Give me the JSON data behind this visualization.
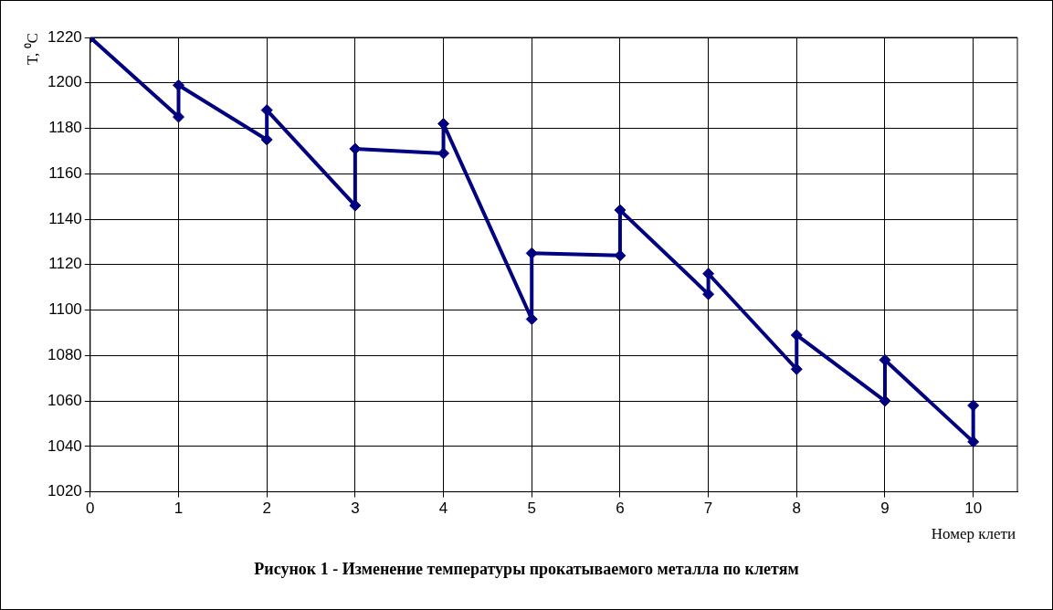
{
  "chart_data": {
    "type": "line",
    "title": "Рисунок 1 - Изменение температуры прокатываемого металла по клетям",
    "xlabel": "Номер клети",
    "ylabel": "T, ⁰C",
    "series": [
      {
        "color": "#000080",
        "x": [
          0,
          1,
          1,
          2,
          2,
          3,
          3,
          4,
          4,
          5,
          5,
          6,
          6,
          7,
          7,
          8,
          8,
          9,
          9,
          10,
          10
        ],
        "values": [
          1220,
          1185,
          1199,
          1175,
          1188,
          1146,
          1171,
          1169,
          1182,
          1096,
          1125,
          1124,
          1144,
          1107,
          1116,
          1074,
          1089,
          1060,
          1078,
          1042,
          1058
        ]
      }
    ],
    "xlim": [
      0,
      10.5
    ],
    "xticks": [
      0,
      1,
      2,
      3,
      4,
      5,
      6,
      7,
      8,
      9,
      10
    ],
    "ylim": [
      1020,
      1220
    ],
    "yticks": [
      1020,
      1040,
      1060,
      1080,
      1100,
      1120,
      1140,
      1160,
      1180,
      1200,
      1220
    ],
    "grid": true,
    "legend": false,
    "marker": "diamond",
    "line_style": "solid"
  }
}
